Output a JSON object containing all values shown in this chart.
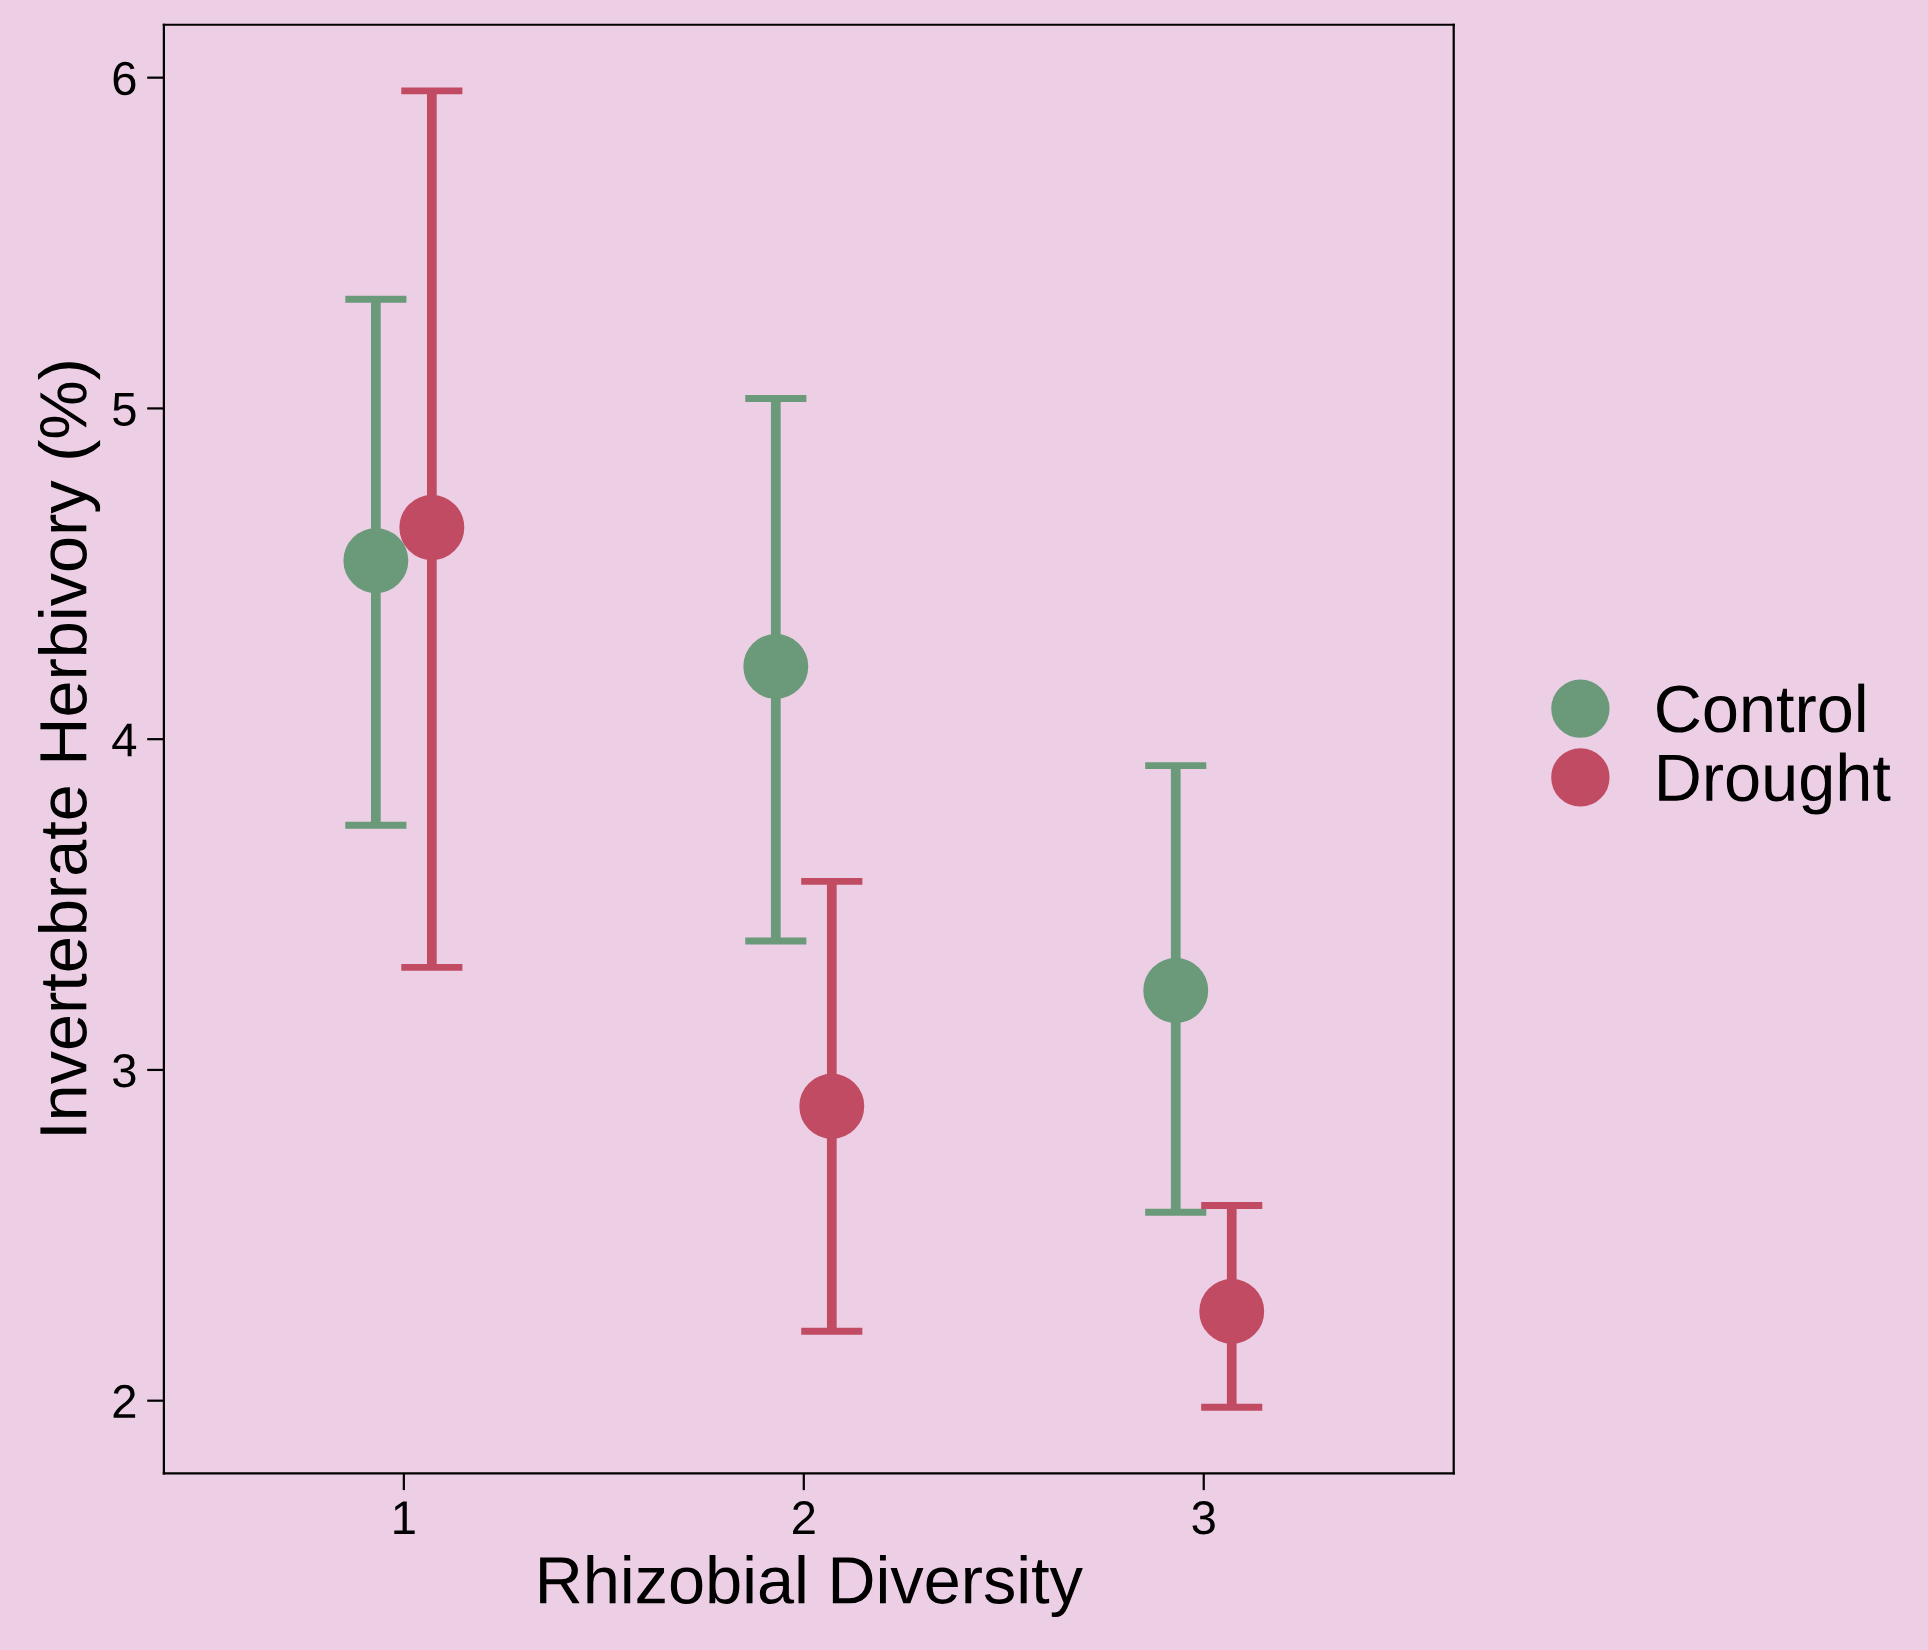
{
  "chart_data": {
    "type": "scatter",
    "xlabel": "Rhizobial Diversity",
    "ylabel": "Invertebrate Herbivory (%)",
    "categories": [
      "1",
      "2",
      "3"
    ],
    "series": [
      {
        "name": "Control",
        "color": "#6b9a7a",
        "values": [
          4.54,
          4.22,
          3.24
        ],
        "errors": [
          [
            3.74,
            5.33
          ],
          [
            3.39,
            5.03
          ],
          [
            2.57,
            3.92
          ]
        ]
      },
      {
        "name": "Drought",
        "color": "#c04b63",
        "values": [
          4.64,
          2.89,
          2.27
        ],
        "errors": [
          [
            3.31,
            5.96
          ],
          [
            2.21,
            3.57
          ],
          [
            1.98,
            2.59
          ]
        ]
      }
    ],
    "ylim": [
      1.78,
      6.16
    ],
    "yticks": [
      2,
      3,
      4,
      5,
      6
    ],
    "grid": false,
    "legend": "right",
    "marker": "circle"
  }
}
